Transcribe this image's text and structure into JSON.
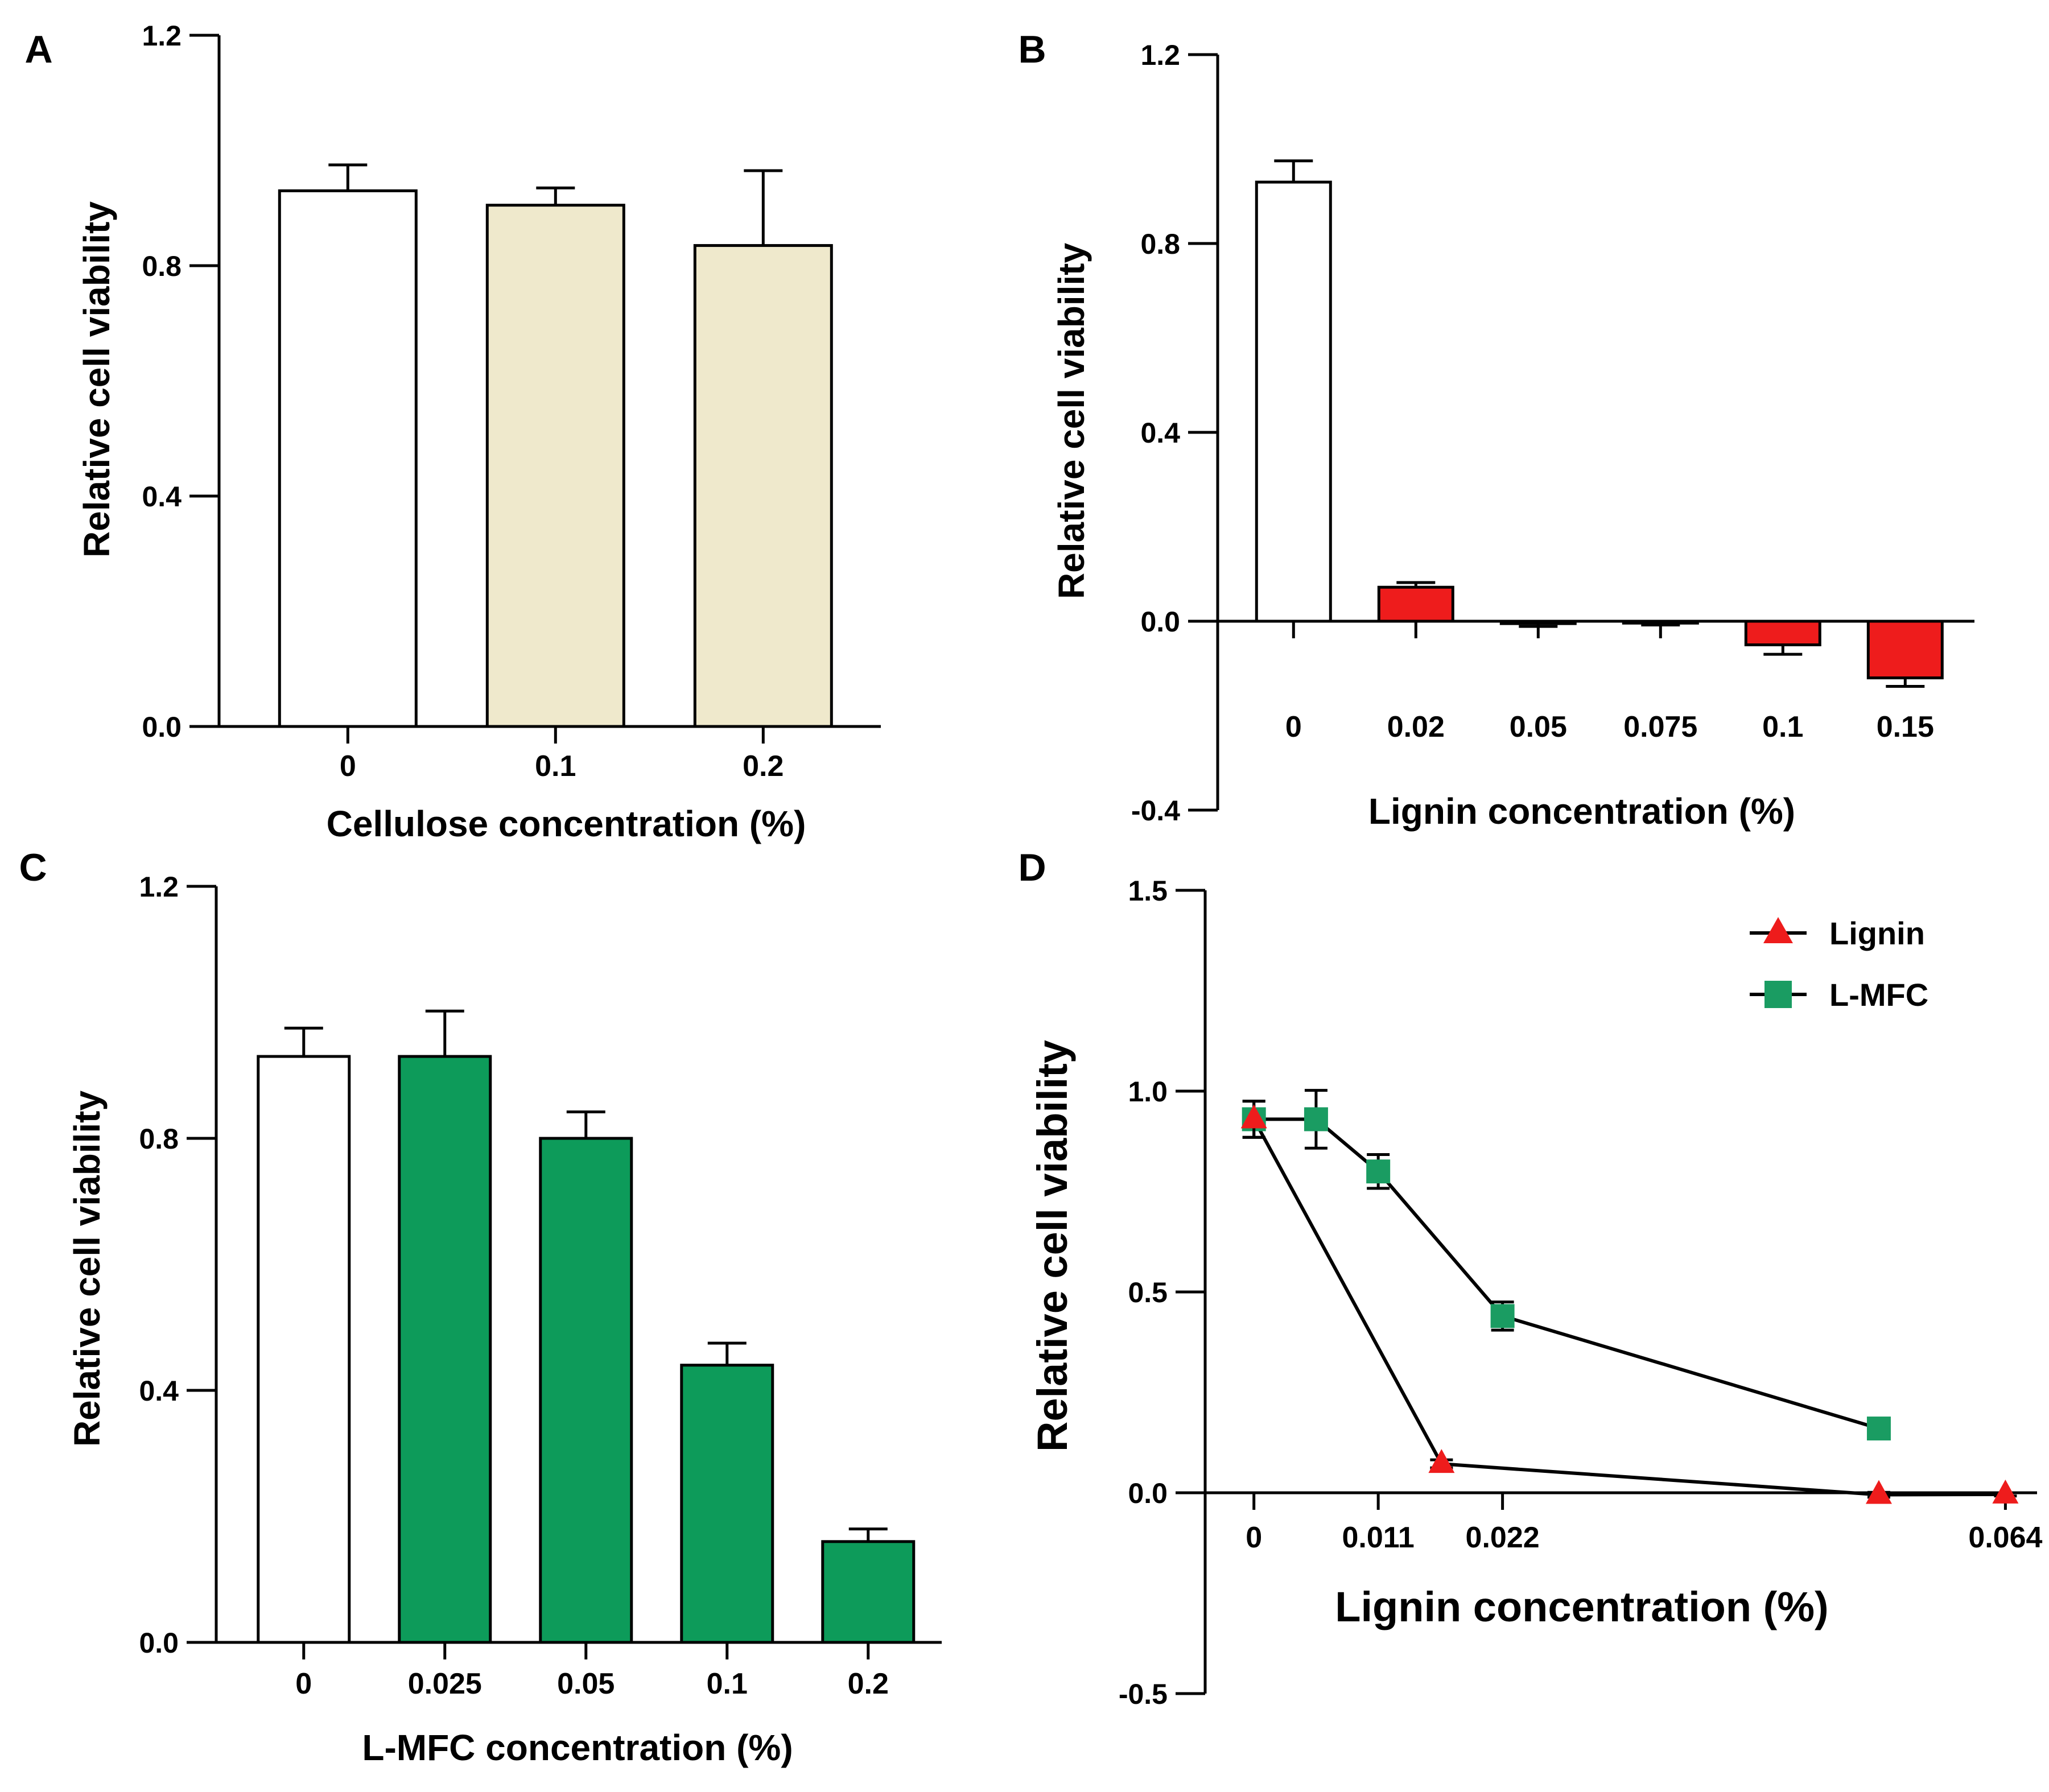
{
  "colors": {
    "axis": "#000000",
    "control_fill": "#ffffff",
    "cellulose_fill": "#efe9cc",
    "lignin_fill": "#ee1c1c",
    "lmfc_fill": "#0d9b5a",
    "lignin_marker": "#ee1c1c",
    "lmfc_marker": "#1a9c62"
  },
  "chart_data": [
    {
      "panel": "A",
      "type": "bar",
      "title": "",
      "xlabel": "Cellulose concentration (%)",
      "ylabel": "Relative cell viability",
      "ylim": [
        0,
        1.2
      ],
      "yticks": [
        "0.0",
        "0.4",
        "0.8",
        "1.2"
      ],
      "categories": [
        "0",
        "0.1",
        "0.2"
      ],
      "values": [
        0.93,
        0.905,
        0.835
      ],
      "errors": [
        0.045,
        0.03,
        0.13
      ],
      "fill_keys": [
        "control_fill",
        "cellulose_fill",
        "cellulose_fill"
      ]
    },
    {
      "panel": "B",
      "type": "bar",
      "title": "",
      "xlabel": "Lignin concentration (%)",
      "ylabel": "Relative cell viability",
      "ylim": [
        -0.4,
        1.2
      ],
      "yticks": [
        "-0.4",
        "0.0",
        "0.4",
        "0.8",
        "1.2"
      ],
      "categories": [
        "0",
        "0.02",
        "0.05",
        "0.075",
        "0.1",
        "0.15"
      ],
      "values": [
        0.93,
        0.072,
        -0.005,
        -0.004,
        -0.05,
        -0.12
      ],
      "errors": [
        0.045,
        0.01,
        0.006,
        0.004,
        0.02,
        0.018
      ],
      "fill_keys": [
        "control_fill",
        "lignin_fill",
        "lignin_fill",
        "lignin_fill",
        "lignin_fill",
        "lignin_fill"
      ]
    },
    {
      "panel": "C",
      "type": "bar",
      "title": "",
      "xlabel": "L-MFC concentration (%)",
      "ylabel": "Relative cell viability",
      "ylim": [
        0,
        1.2
      ],
      "yticks": [
        "0.0",
        "0.4",
        "0.8",
        "1.2"
      ],
      "categories": [
        "0",
        "0.025",
        "0.05",
        "0.1",
        "0.2"
      ],
      "values": [
        0.93,
        0.93,
        0.8,
        0.44,
        0.16
      ],
      "errors": [
        0.045,
        0.072,
        0.042,
        0.035,
        0.02
      ],
      "fill_keys": [
        "control_fill",
        "lmfc_fill",
        "lmfc_fill",
        "lmfc_fill",
        "lmfc_fill"
      ]
    },
    {
      "panel": "D",
      "type": "line",
      "title": "",
      "xlabel": "Lignin concentration (%)",
      "ylabel": "Relative cell viability",
      "ylim": [
        -0.5,
        1.5
      ],
      "yticks": [
        "-0.5",
        "0.0",
        "0.5",
        "1.0",
        "1.5"
      ],
      "xlim": [
        -0.0022,
        0.0693
      ],
      "xtick_values": [
        0,
        0.011,
        0.022,
        0.064
      ],
      "xtick_positions": [
        0,
        0.011,
        0.022,
        0.0665
      ],
      "xticks": [
        "0",
        "0.011",
        "0.022",
        "0.064"
      ],
      "legend_position": "top-right",
      "series": [
        {
          "name": "Lignin",
          "marker": "triangle",
          "color_key": "lignin_marker",
          "x": [
            0,
            0.0166,
            0.0553,
            0.0665
          ],
          "y": [
            0.93,
            0.072,
            -0.005,
            -0.004
          ],
          "errors": [
            0.045,
            0.01,
            0.006,
            0.004
          ]
        },
        {
          "name": "L-MFC",
          "marker": "square",
          "color_key": "lmfc_marker",
          "x": [
            0,
            0.0055,
            0.011,
            0.022,
            0.0553
          ],
          "y": [
            0.93,
            0.93,
            0.8,
            0.44,
            0.16
          ],
          "errors": [
            0.045,
            0.072,
            0.042,
            0.035,
            0.02
          ]
        }
      ]
    }
  ]
}
